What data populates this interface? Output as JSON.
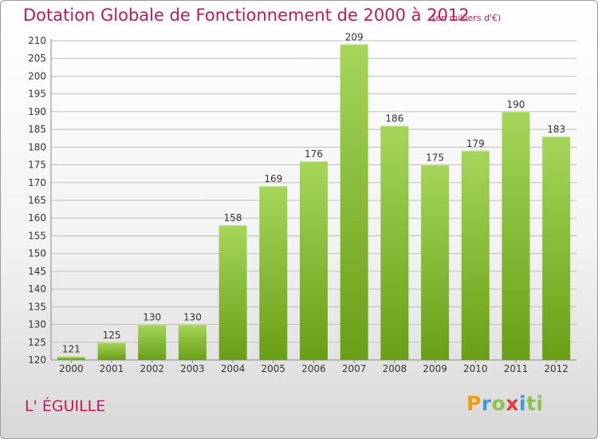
{
  "header": {
    "title": "Dotation Globale de Fonctionnement de 2000 à 2012",
    "unit_note": "(en milliers d'€)"
  },
  "commune": "L' ÉGUILLE",
  "logo": {
    "text": "Proxiti",
    "letters": [
      "P",
      "r",
      "o",
      "x",
      "i",
      "ti"
    ]
  },
  "colors": {
    "bar_light": "#a5d65a",
    "bar_dark": "#6a9e16",
    "title": "#c2185b",
    "grid": "#bdbdbd"
  },
  "chart_data": {
    "type": "bar",
    "categories": [
      "2000",
      "2001",
      "2002",
      "2003",
      "2004",
      "2005",
      "2006",
      "2007",
      "2008",
      "2009",
      "2010",
      "2011",
      "2012"
    ],
    "values": [
      121,
      125,
      130,
      130,
      158,
      169,
      176,
      209,
      186,
      175,
      179,
      190,
      183
    ],
    "title": "Dotation Globale de Fonctionnement de 2000 à 2012",
    "subtitle": "(en milliers d'€)",
    "ylim": [
      120,
      210
    ],
    "yticks": [
      120,
      125,
      130,
      135,
      140,
      145,
      150,
      155,
      160,
      165,
      170,
      175,
      180,
      185,
      190,
      195,
      200,
      205,
      210
    ],
    "grid": true
  }
}
